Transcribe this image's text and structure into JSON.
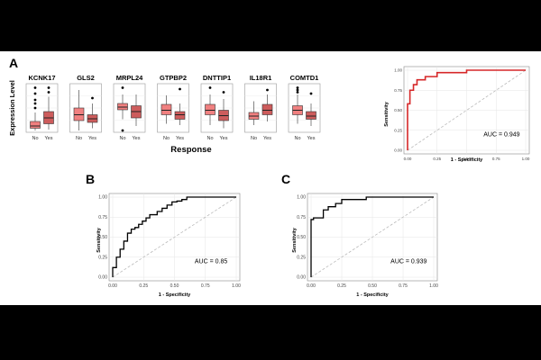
{
  "panel_labels": {
    "a": "A",
    "b": "B",
    "c": "C"
  },
  "boxplots": {
    "ylabel": "Expression Level",
    "xlabel": "Response",
    "categories": [
      "No",
      "Yes"
    ],
    "colors": {
      "no": "#f08080",
      "yes": "#cd5c5c"
    },
    "ylim": [
      0,
      1
    ],
    "genes": [
      {
        "name": "KCNK17",
        "no": {
          "q1": 0.05,
          "med": 0.1,
          "q3": 0.2,
          "lo": 0.0,
          "hi": 0.4,
          "out": [
            0.5,
            0.6,
            0.68,
            0.82,
            0.95
          ]
        },
        "yes": {
          "q1": 0.15,
          "med": 0.28,
          "q3": 0.42,
          "lo": 0.02,
          "hi": 0.75,
          "out": [
            0.85,
            0.95
          ]
        }
      },
      {
        "name": "GLS2",
        "no": {
          "q1": 0.22,
          "med": 0.35,
          "q3": 0.5,
          "lo": 0.0,
          "hi": 0.9,
          "out": []
        },
        "yes": {
          "q1": 0.18,
          "med": 0.26,
          "q3": 0.35,
          "lo": 0.05,
          "hi": 0.6,
          "out": [
            0.72
          ]
        }
      },
      {
        "name": "MRPL24",
        "no": {
          "q1": 0.46,
          "med": 0.52,
          "q3": 0.6,
          "lo": 0.25,
          "hi": 0.8,
          "out": [
            0.0,
            0.95
          ]
        },
        "yes": {
          "q1": 0.28,
          "med": 0.42,
          "q3": 0.55,
          "lo": 0.1,
          "hi": 0.8,
          "out": []
        }
      },
      {
        "name": "GTPBP2",
        "no": {
          "q1": 0.35,
          "med": 0.45,
          "q3": 0.58,
          "lo": 0.15,
          "hi": 0.78,
          "out": []
        },
        "yes": {
          "q1": 0.25,
          "med": 0.35,
          "q3": 0.42,
          "lo": 0.12,
          "hi": 0.6,
          "out": [
            0.92
          ]
        }
      },
      {
        "name": "DNTTIP1",
        "no": {
          "q1": 0.35,
          "med": 0.45,
          "q3": 0.58,
          "lo": 0.12,
          "hi": 0.8,
          "out": [
            0.95
          ]
        },
        "yes": {
          "q1": 0.22,
          "med": 0.33,
          "q3": 0.45,
          "lo": 0.05,
          "hi": 0.7,
          "out": [
            0.85
          ]
        }
      },
      {
        "name": "IL18R1",
        "no": {
          "q1": 0.25,
          "med": 0.32,
          "q3": 0.4,
          "lo": 0.12,
          "hi": 0.65,
          "out": []
        },
        "yes": {
          "q1": 0.35,
          "med": 0.45,
          "q3": 0.58,
          "lo": 0.2,
          "hi": 0.8,
          "out": [
            0.9
          ]
        }
      },
      {
        "name": "COMTD1",
        "no": {
          "q1": 0.35,
          "med": 0.45,
          "q3": 0.55,
          "lo": 0.15,
          "hi": 0.8,
          "out": [
            0.85,
            0.9,
            0.95
          ]
        },
        "yes": {
          "q1": 0.25,
          "med": 0.32,
          "q3": 0.42,
          "lo": 0.1,
          "hi": 0.6,
          "out": [
            0.82
          ]
        }
      }
    ]
  },
  "chart_data": [
    {
      "type": "line",
      "title": "",
      "xlabel": "1 - Specificity",
      "ylabel": "Sensitivity",
      "xlim": [
        0,
        1
      ],
      "ylim": [
        0,
        1
      ],
      "ticks": [
        "0.00",
        "0.25",
        "0.50",
        "0.75",
        "1.00"
      ],
      "annotation": "AUC = 0.949",
      "color": "#d62728",
      "stroke_width": 1.6,
      "x": [
        0,
        0,
        0.02,
        0.02,
        0.05,
        0.05,
        0.08,
        0.08,
        0.15,
        0.15,
        0.25,
        0.25,
        0.5,
        0.5,
        1.0
      ],
      "y": [
        0,
        0.58,
        0.58,
        0.75,
        0.75,
        0.82,
        0.82,
        0.88,
        0.88,
        0.92,
        0.92,
        0.97,
        0.97,
        1.0,
        1.0
      ]
    },
    {
      "type": "line",
      "title": "",
      "xlabel": "1 - Specificity",
      "ylabel": "Sensitivity",
      "xlim": [
        0,
        1
      ],
      "ylim": [
        0,
        1
      ],
      "ticks": [
        "0.00",
        "0.25",
        "0.50",
        "0.75",
        "1.00"
      ],
      "annotation": "AUC = 0.85",
      "color": "#000000",
      "stroke_width": 1.3,
      "x": [
        0,
        0,
        0.03,
        0.03,
        0.06,
        0.06,
        0.09,
        0.09,
        0.12,
        0.12,
        0.15,
        0.15,
        0.18,
        0.18,
        0.21,
        0.21,
        0.24,
        0.24,
        0.27,
        0.27,
        0.3,
        0.3,
        0.36,
        0.36,
        0.4,
        0.4,
        0.44,
        0.44,
        0.48,
        0.48,
        0.52,
        0.52,
        0.56,
        0.56,
        0.6,
        0.6,
        0.8,
        0.8,
        1.0
      ],
      "y": [
        0,
        0.12,
        0.12,
        0.25,
        0.25,
        0.35,
        0.35,
        0.45,
        0.45,
        0.55,
        0.55,
        0.6,
        0.6,
        0.62,
        0.62,
        0.66,
        0.66,
        0.7,
        0.7,
        0.74,
        0.74,
        0.78,
        0.78,
        0.82,
        0.82,
        0.86,
        0.86,
        0.9,
        0.9,
        0.94,
        0.94,
        0.95,
        0.95,
        0.97,
        0.97,
        1.0,
        1.0,
        1.0,
        1.0
      ]
    },
    {
      "type": "line",
      "title": "",
      "xlabel": "1 - Specificity",
      "ylabel": "Sensitivity",
      "xlim": [
        0,
        1
      ],
      "ylim": [
        0,
        1
      ],
      "ticks": [
        "0.00",
        "0.25",
        "0.50",
        "0.75",
        "1.00"
      ],
      "annotation": "AUC = 0.939",
      "color": "#000000",
      "stroke_width": 1.3,
      "x": [
        0,
        0,
        0.02,
        0.02,
        0.1,
        0.1,
        0.14,
        0.14,
        0.2,
        0.2,
        0.25,
        0.25,
        0.45,
        0.45,
        1.0
      ],
      "y": [
        0,
        0.72,
        0.72,
        0.74,
        0.74,
        0.84,
        0.84,
        0.88,
        0.88,
        0.92,
        0.92,
        0.97,
        0.97,
        1.0,
        1.0
      ]
    }
  ]
}
